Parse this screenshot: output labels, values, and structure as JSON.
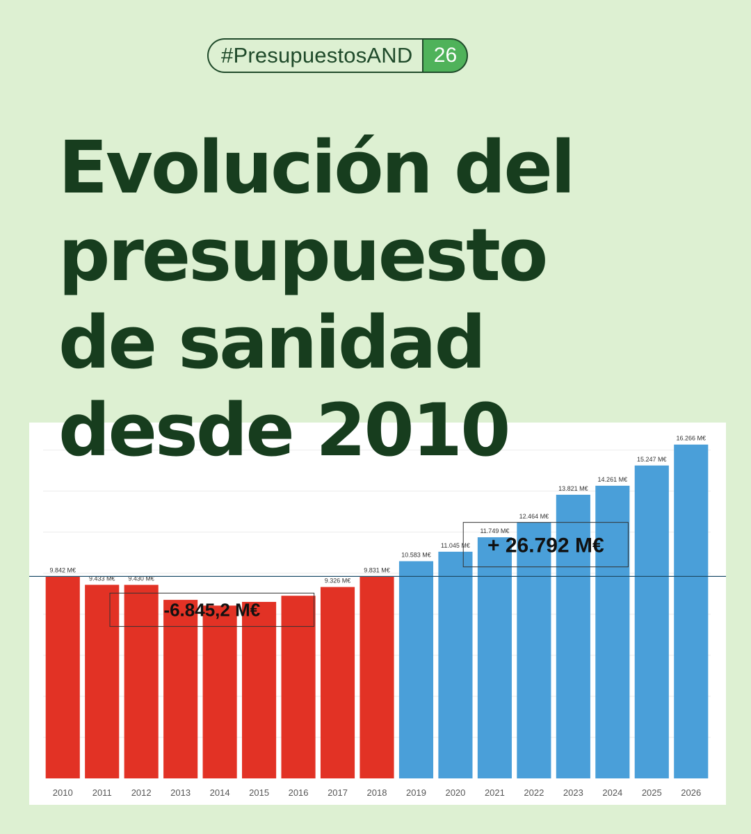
{
  "header": {
    "hashtag": "#PresupuestosAND",
    "badge": "26"
  },
  "title_lines": [
    "Evolución del",
    "presupuesto",
    "de sanidad",
    "desde 2010"
  ],
  "colors": {
    "background": "#ddf0d2",
    "title": "#173d1e",
    "badge_green": "#4fb25a",
    "bar_red": "#e23225",
    "bar_blue": "#4a9fd9",
    "reference_line": "#1f4f6b"
  },
  "chart_data": {
    "type": "bar",
    "title": "",
    "xlabel": "",
    "ylabel": "",
    "ylim": [
      0,
      17000
    ],
    "grid": true,
    "categories": [
      "2010",
      "2011",
      "2012",
      "2013",
      "2014",
      "2015",
      "2016",
      "2017",
      "2018",
      "2019",
      "2020",
      "2021",
      "2022",
      "2023",
      "2024",
      "2025",
      "2026"
    ],
    "values": [
      9842,
      9433,
      9430,
      8700,
      8420,
      8600,
      8900,
      9326,
      9831,
      10583,
      11045,
      11749,
      12464,
      13821,
      14261,
      15247,
      16266
    ],
    "data_labels": [
      "9.842 M€",
      "9.433 M€",
      "9.430 M€",
      "",
      "",
      "",
      "",
      "9.326 M€",
      "9.831 M€",
      "10.583 M€",
      "11.045 M€",
      "11.749 M€",
      "12.464 M€",
      "13.821 M€",
      "14.261 M€",
      "15.247 M€",
      "16.266 M€"
    ],
    "bar_colors": [
      "#e23225",
      "#e23225",
      "#e23225",
      "#e23225",
      "#e23225",
      "#e23225",
      "#e23225",
      "#e23225",
      "#e23225",
      "#4a9fd9",
      "#4a9fd9",
      "#4a9fd9",
      "#4a9fd9",
      "#4a9fd9",
      "#4a9fd9",
      "#4a9fd9",
      "#4a9fd9"
    ],
    "reference_value": 9842,
    "annotations": [
      {
        "text": "-6.845,2 M€",
        "period": [
          "2012",
          "2016"
        ]
      },
      {
        "text": "+ 26.792 M€",
        "period": [
          "2021",
          "2024"
        ]
      }
    ]
  }
}
